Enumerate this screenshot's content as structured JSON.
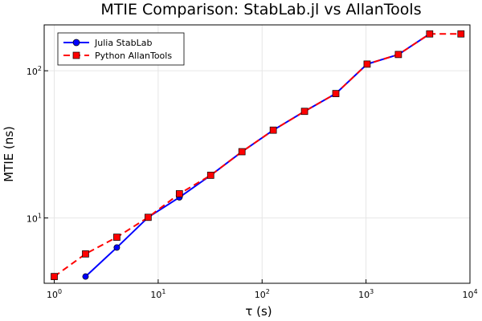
{
  "chart_data": {
    "type": "line",
    "title": "MTIE Comparison: StabLab.jl vs AllanTools",
    "xlabel": "τ (s)",
    "ylabel": "MTIE (ns)",
    "xscale": "log",
    "yscale": "log",
    "xlim": [
      0.8,
      10000
    ],
    "ylim": [
      3.6,
      205
    ],
    "grid": true,
    "legend_position": "top-left",
    "x_ticks": [
      {
        "value": 1,
        "base": "10",
        "exp": "0"
      },
      {
        "value": 10,
        "base": "10",
        "exp": "1"
      },
      {
        "value": 100,
        "base": "10",
        "exp": "2"
      },
      {
        "value": 1000,
        "base": "10",
        "exp": "3"
      },
      {
        "value": 10000,
        "base": "10",
        "exp": "4"
      }
    ],
    "y_ticks": [
      {
        "value": 10,
        "base": "10",
        "exp": "1"
      },
      {
        "value": 100,
        "base": "10",
        "exp": "2"
      }
    ],
    "series": [
      {
        "name": "Julia StabLab",
        "color": "#0000ff",
        "marker": "circle",
        "line_style": "solid",
        "x": [
          2,
          4,
          8,
          16,
          32,
          64,
          128,
          256,
          512,
          1024,
          2048,
          4096
        ],
        "y": [
          4.0,
          6.3,
          10.1,
          13.8,
          19.5,
          28.2,
          39.5,
          53.0,
          70.0,
          111.0,
          129.0,
          178.0
        ]
      },
      {
        "name": "Python AllanTools",
        "color": "#ff0000",
        "marker": "square",
        "line_style": "dashed",
        "x": [
          1,
          2,
          4,
          8,
          16,
          32,
          64,
          128,
          256,
          512,
          1024,
          2048,
          4096,
          8192
        ],
        "y": [
          4.0,
          5.7,
          7.4,
          10.1,
          14.6,
          19.5,
          28.2,
          39.5,
          53.0,
          70.0,
          111.0,
          129.0,
          178.0,
          178.0
        ]
      }
    ]
  }
}
